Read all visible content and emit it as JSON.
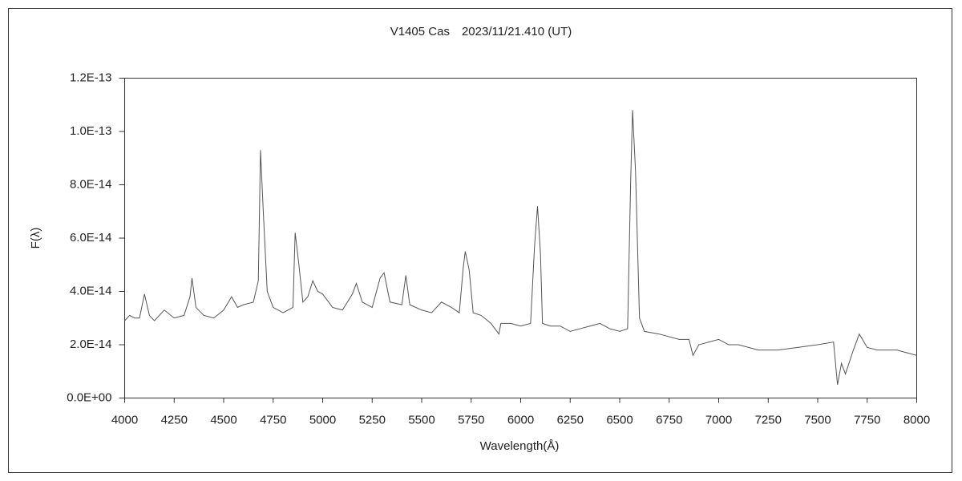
{
  "chart_data": {
    "type": "line",
    "title": "V1405 Cas　2023/11/21.410 (UT)",
    "x_label": "Wavelength(Å)",
    "y_label": "F(λ)",
    "xlim": [
      4000,
      8000
    ],
    "xticks": [
      4000,
      4250,
      4500,
      4750,
      5000,
      5250,
      5500,
      5750,
      6000,
      6250,
      6500,
      6750,
      7000,
      7250,
      7500,
      7750,
      8000
    ],
    "ylim": [
      0,
      1.2e-13
    ],
    "yticks": [
      {
        "value": 0,
        "label": "0.0E+00"
      },
      {
        "value": 2e-14,
        "label": "2.0E-14"
      },
      {
        "value": 4e-14,
        "label": "4.0E-14"
      },
      {
        "value": 6e-14,
        "label": "6.0E-14"
      },
      {
        "value": 8e-14,
        "label": "8.0E-14"
      },
      {
        "value": 1e-13,
        "label": "1.0E-13"
      },
      {
        "value": 1.2e-13,
        "label": "1.2E-13"
      }
    ],
    "grid": false,
    "series": [
      {
        "color": "#555555",
        "x": [
          4000,
          4025,
          4050,
          4075,
          4100,
          4125,
          4150,
          4200,
          4250,
          4300,
          4330,
          4340,
          4360,
          4400,
          4450,
          4500,
          4540,
          4570,
          4600,
          4650,
          4675,
          4686,
          4700,
          4720,
          4750,
          4800,
          4850,
          4861,
          4880,
          4900,
          4925,
          4950,
          4975,
          5000,
          5050,
          5100,
          5150,
          5170,
          5200,
          5250,
          5290,
          5310,
          5340,
          5400,
          5420,
          5440,
          5500,
          5550,
          5600,
          5650,
          5690,
          5710,
          5720,
          5740,
          5760,
          5800,
          5850,
          5890,
          5900,
          5950,
          6000,
          6050,
          6070,
          6085,
          6100,
          6110,
          6150,
          6200,
          6250,
          6300,
          6350,
          6400,
          6450,
          6500,
          6540,
          6555,
          6565,
          6580,
          6600,
          6625,
          6700,
          6800,
          6850,
          6870,
          6900,
          7000,
          7050,
          7100,
          7200,
          7250,
          7300,
          7400,
          7500,
          7580,
          7600,
          7620,
          7640,
          7680,
          7710,
          7750,
          7800,
          7900,
          7950,
          8000
        ],
        "values": [
          2.9e-14,
          3.1e-14,
          3e-14,
          3e-14,
          3.9e-14,
          3.1e-14,
          2.9e-14,
          3.3e-14,
          3e-14,
          3.1e-14,
          3.8e-14,
          4.5e-14,
          3.4e-14,
          3.1e-14,
          3e-14,
          3.3e-14,
          3.8e-14,
          3.4e-14,
          3.5e-14,
          3.6e-14,
          4.4e-14,
          9.3e-14,
          7e-14,
          4e-14,
          3.4e-14,
          3.2e-14,
          3.4e-14,
          6.2e-14,
          5e-14,
          3.6e-14,
          3.8e-14,
          4.4e-14,
          4e-14,
          3.9e-14,
          3.4e-14,
          3.3e-14,
          3.9e-14,
          4.3e-14,
          3.6e-14,
          3.4e-14,
          4.5e-14,
          4.7e-14,
          3.6e-14,
          3.5e-14,
          4.6e-14,
          3.5e-14,
          3.3e-14,
          3.2e-14,
          3.6e-14,
          3.4e-14,
          3.2e-14,
          4.9e-14,
          5.5e-14,
          4.8e-14,
          3.2e-14,
          3.1e-14,
          2.8e-14,
          2.4e-14,
          2.8e-14,
          2.8e-14,
          2.7e-14,
          2.8e-14,
          5.7e-14,
          7.2e-14,
          5.4e-14,
          2.8e-14,
          2.7e-14,
          2.7e-14,
          2.5e-14,
          2.6e-14,
          2.7e-14,
          2.8e-14,
          2.6e-14,
          2.5e-14,
          2.6e-14,
          8e-14,
          1.08e-13,
          8.5e-14,
          3e-14,
          2.5e-14,
          2.4e-14,
          2.2e-14,
          2.2e-14,
          1.6e-14,
          2e-14,
          2.2e-14,
          2e-14,
          2e-14,
          1.8e-14,
          1.8e-14,
          1.8e-14,
          1.9e-14,
          2e-14,
          2.1e-14,
          5e-15,
          1.3e-14,
          9e-15,
          1.8e-14,
          2.4e-14,
          1.9e-14,
          1.8e-14,
          1.8e-14,
          1.7e-14,
          1.6e-14
        ]
      }
    ]
  }
}
